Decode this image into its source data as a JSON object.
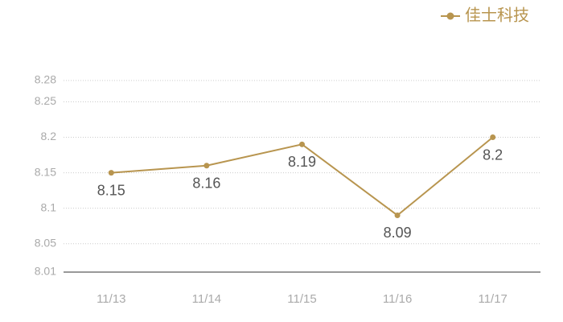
{
  "chart_data": {
    "type": "line",
    "categories": [
      "11/13",
      "11/14",
      "11/15",
      "11/16",
      "11/17"
    ],
    "series": [
      {
        "name": "佳士科技",
        "color": "#b8954f",
        "values": [
          8.15,
          8.16,
          8.19,
          8.09,
          8.2
        ]
      }
    ],
    "ylim": [
      8.01,
      8.28
    ],
    "yticks": [
      8.01,
      8.05,
      8.1,
      8.15,
      8.2,
      8.25,
      8.28
    ],
    "grid": true,
    "legend": "top-right",
    "data_labels": true
  }
}
